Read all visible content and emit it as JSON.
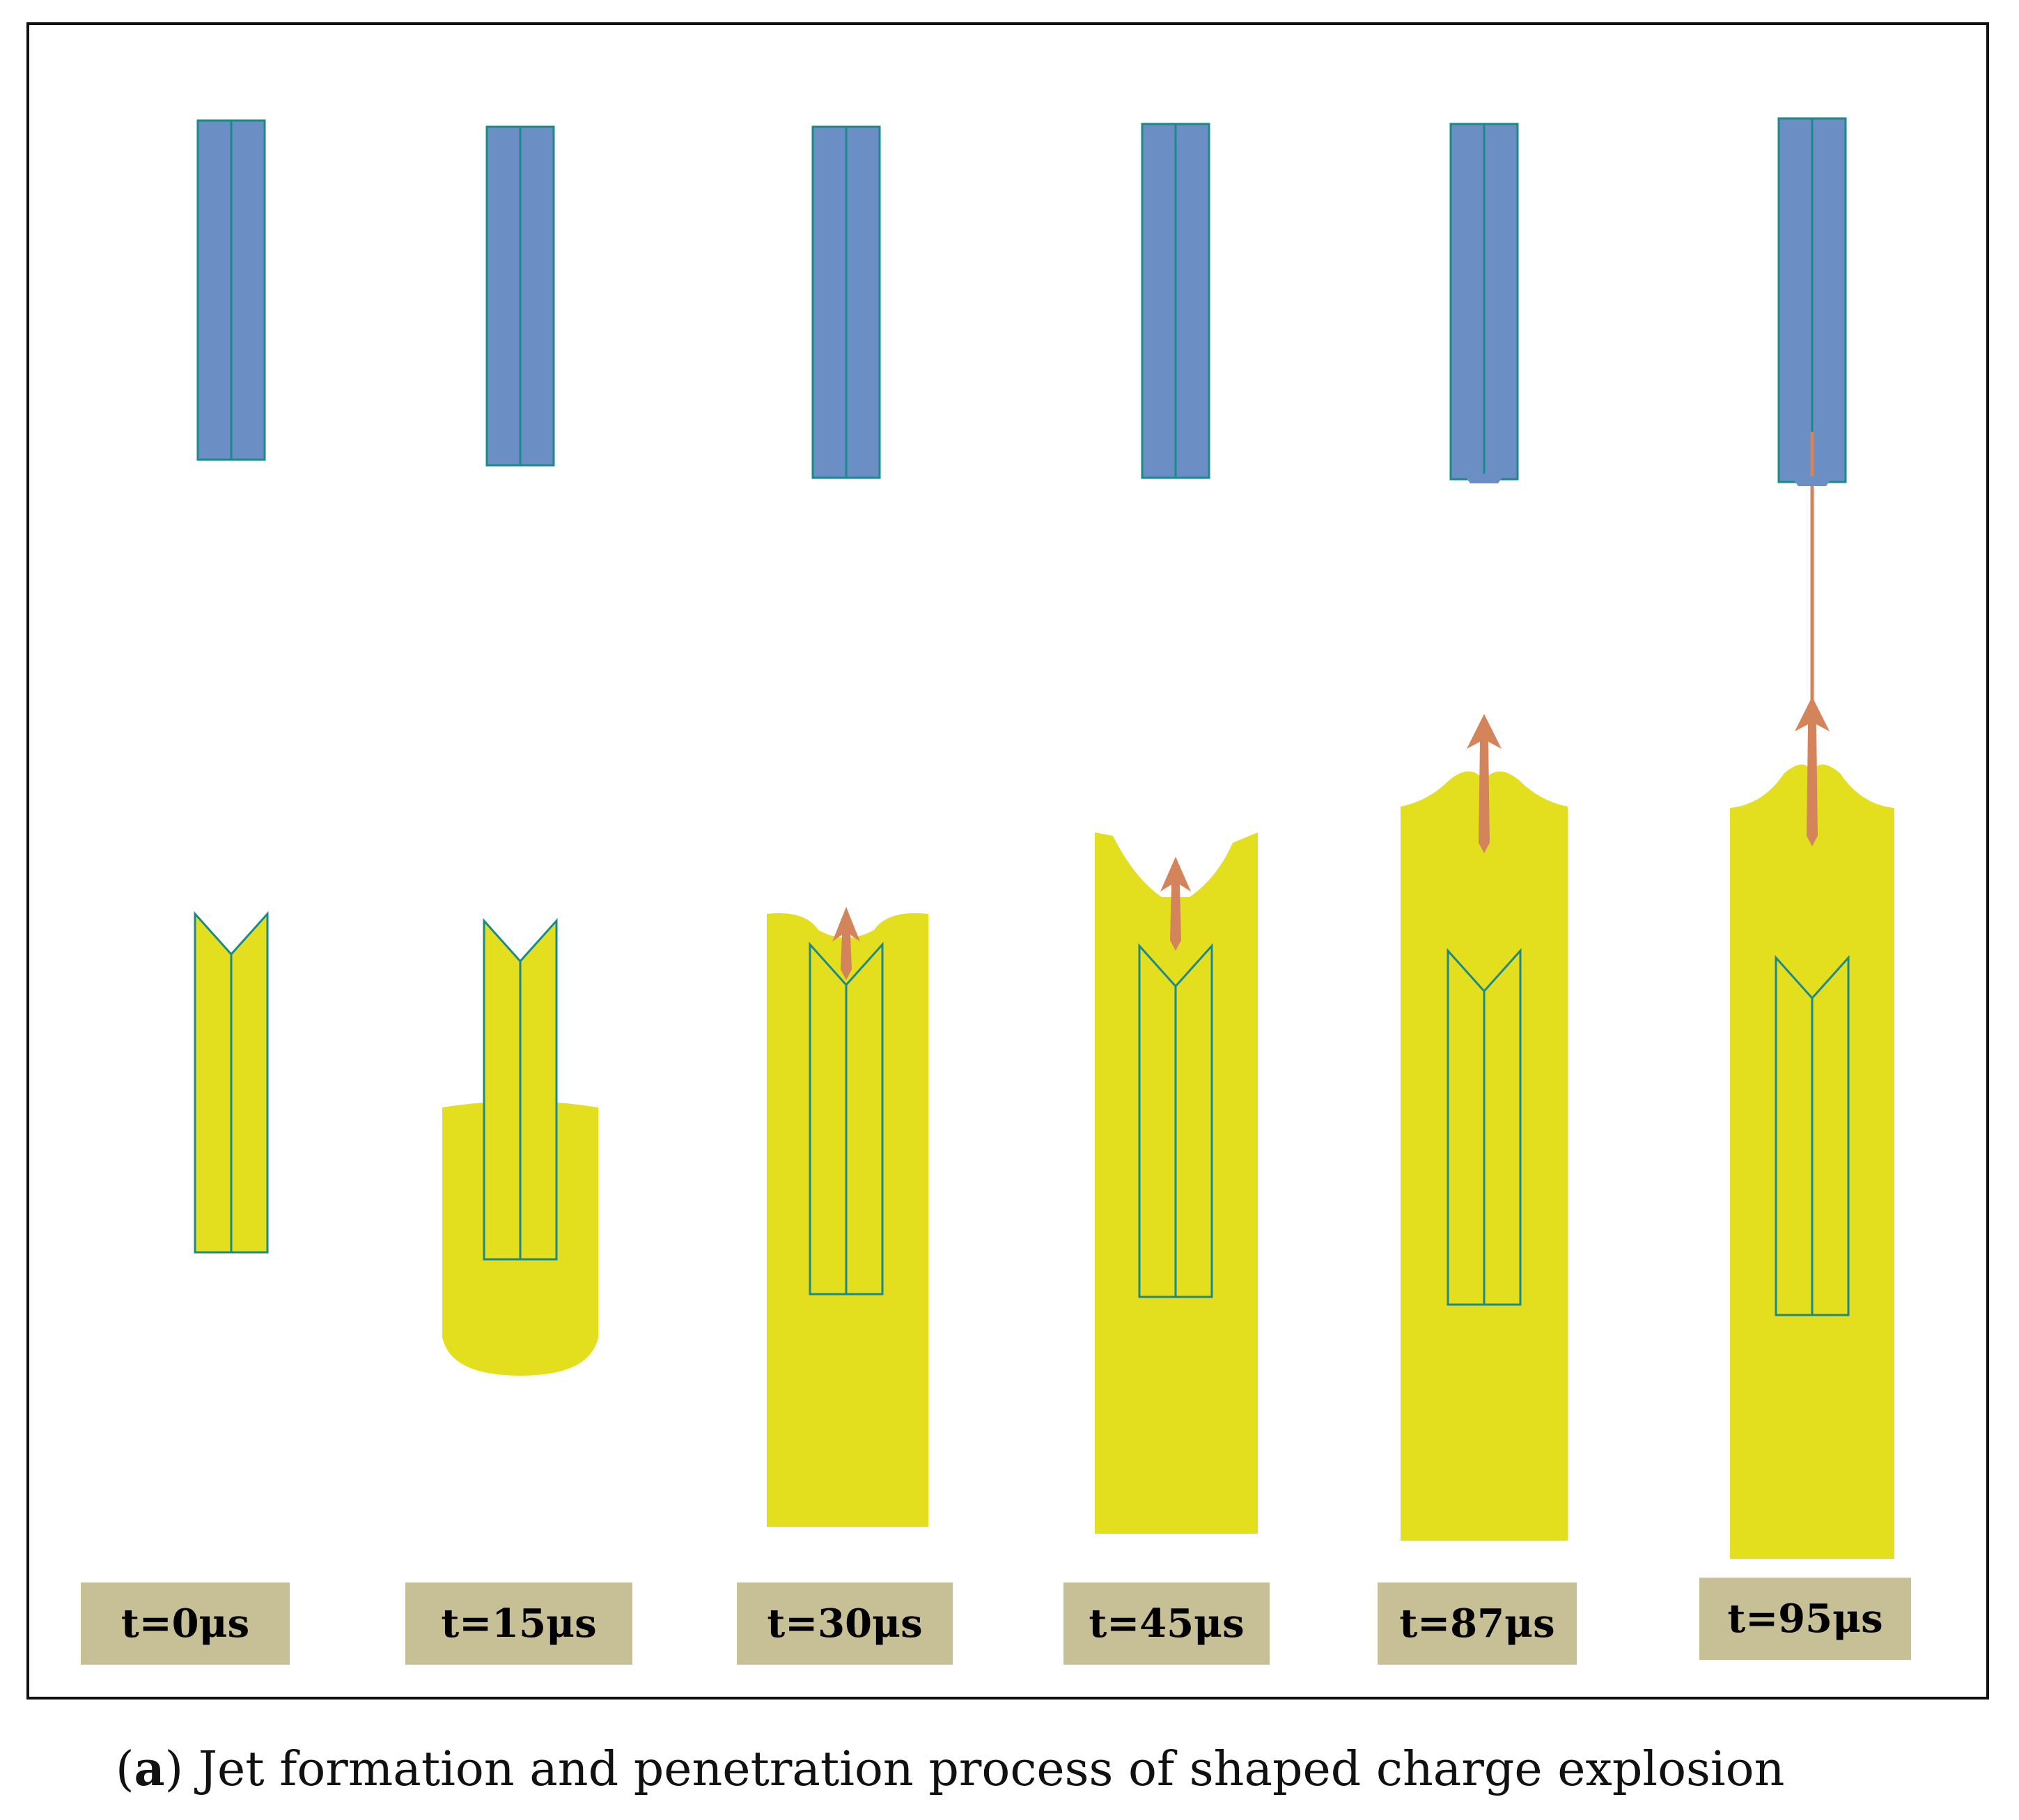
{
  "colors": {
    "projectile": "#6b8fc4",
    "edge": "#1a8a8a",
    "target": "#e3df1e",
    "jet": "#d4845a",
    "label_bg": "#c7bf95"
  },
  "frames": [
    {
      "label": "t=0μs"
    },
    {
      "label": "t=15μs"
    },
    {
      "label": "t=30μs"
    },
    {
      "label": "t=45μs"
    },
    {
      "label": "t=87μs"
    },
    {
      "label": "t=95μs"
    }
  ],
  "caption": {
    "letter": "a",
    "text": "Jet formation and penetration process of shaped charge explosion"
  }
}
